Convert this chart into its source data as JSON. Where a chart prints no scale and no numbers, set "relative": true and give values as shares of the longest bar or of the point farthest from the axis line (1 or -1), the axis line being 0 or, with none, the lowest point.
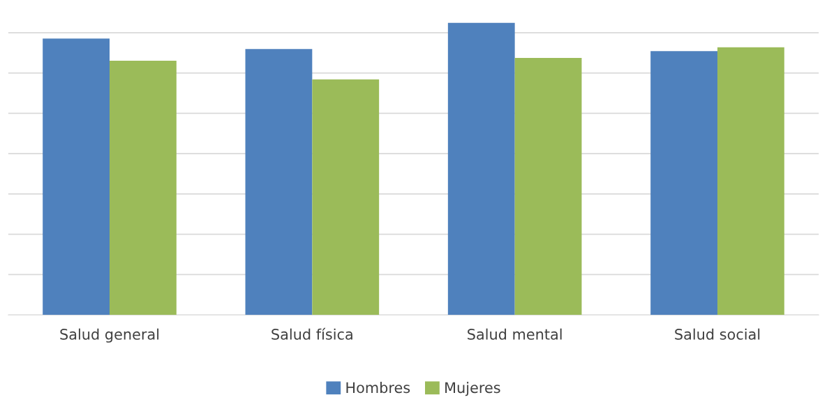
{
  "chart_data": {
    "type": "bar",
    "relative": true,
    "categories": [
      "Salud general",
      "Salud física",
      "Salud mental",
      "Salud social"
    ],
    "series": [
      {
        "name": "Hombres",
        "color": "#4f81bd",
        "values": [
          0.946,
          0.91,
          1,
          0.903
        ]
      },
      {
        "name": "Mujeres",
        "color": "#9bbb59",
        "values": [
          0.87,
          0.806,
          0.88,
          0.916
        ]
      }
    ],
    "grid": "y",
    "legend": "bottom"
  }
}
